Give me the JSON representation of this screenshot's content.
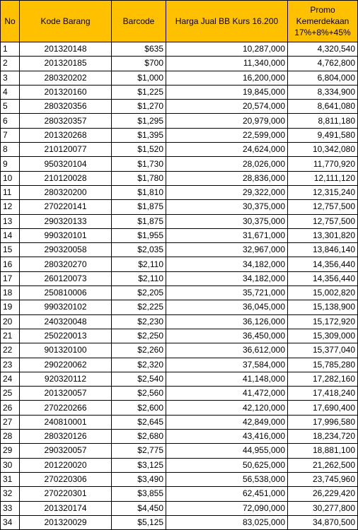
{
  "headers": {
    "no": "No",
    "kode": "Kode Barang",
    "barcode": "Barcode",
    "harga": "Harga Jual BB Kurs 16.200",
    "promo_line1": "Promo",
    "promo_line2": "Kemerdekaan",
    "promo_line3": "17%+8%+45%"
  },
  "colors": {
    "header_bg": "#ffc000",
    "grid": "#000000"
  },
  "rows": [
    {
      "no": "1",
      "kode": "201320148",
      "barcode": "$635",
      "harga": "10,287,000",
      "promo": "4,320,540"
    },
    {
      "no": "2",
      "kode": "201320185",
      "barcode": "$700",
      "harga": "11,340,000",
      "promo": "4,762,800"
    },
    {
      "no": "3",
      "kode": "280320202",
      "barcode": "$1,000",
      "harga": "16,200,000",
      "promo": "6,804,000"
    },
    {
      "no": "4",
      "kode": "201320160",
      "barcode": "$1,225",
      "harga": "19,845,000",
      "promo": "8,334,900"
    },
    {
      "no": "5",
      "kode": "280320356",
      "barcode": "$1,270",
      "harga": "20,574,000",
      "promo": "8,641,080"
    },
    {
      "no": "6",
      "kode": "280320357",
      "barcode": "$1,295",
      "harga": "20,979,000",
      "promo": "8,811,180"
    },
    {
      "no": "7",
      "kode": "201320268",
      "barcode": "$1,395",
      "harga": "22,599,000",
      "promo": "9,491,580"
    },
    {
      "no": "8",
      "kode": "210120077",
      "barcode": "$1,520",
      "harga": "24,624,000",
      "promo": "10,342,080"
    },
    {
      "no": "9",
      "kode": "950320104",
      "barcode": "$1,730",
      "harga": "28,026,000",
      "promo": "11,770,920"
    },
    {
      "no": "10",
      "kode": "210120028",
      "barcode": "$1,780",
      "harga": "28,836,000",
      "promo": "12,111,120"
    },
    {
      "no": "11",
      "kode": "280320200",
      "barcode": "$1,810",
      "harga": "29,322,000",
      "promo": "12,315,240"
    },
    {
      "no": "12",
      "kode": "270220141",
      "barcode": "$1,875",
      "harga": "30,375,000",
      "promo": "12,757,500"
    },
    {
      "no": "13",
      "kode": "290320133",
      "barcode": "$1,875",
      "harga": "30,375,000",
      "promo": "12,757,500"
    },
    {
      "no": "14",
      "kode": "990320101",
      "barcode": "$1,955",
      "harga": "31,671,000",
      "promo": "13,301,820"
    },
    {
      "no": "15",
      "kode": "290320058",
      "barcode": "$2,035",
      "harga": "32,967,000",
      "promo": "13,846,140"
    },
    {
      "no": "16",
      "kode": "280320270",
      "barcode": "$2,110",
      "harga": "34,182,000",
      "promo": "14,356,440"
    },
    {
      "no": "17",
      "kode": "260120073",
      "barcode": "$2,110",
      "harga": "34,182,000",
      "promo": "14,356,440"
    },
    {
      "no": "18",
      "kode": "250810006",
      "barcode": "$2,205",
      "harga": "35,721,000",
      "promo": "15,002,820"
    },
    {
      "no": "19",
      "kode": "990320102",
      "barcode": "$2,225",
      "harga": "36,045,000",
      "promo": "15,138,900"
    },
    {
      "no": "20",
      "kode": "240320048",
      "barcode": "$2,230",
      "harga": "36,126,000",
      "promo": "15,172,920"
    },
    {
      "no": "21",
      "kode": "250220013",
      "barcode": "$2,250",
      "harga": "36,450,000",
      "promo": "15,309,000"
    },
    {
      "no": "22",
      "kode": "901320100",
      "barcode": "$2,260",
      "harga": "36,612,000",
      "promo": "15,377,040"
    },
    {
      "no": "23",
      "kode": "290220062",
      "barcode": "$2,320",
      "harga": "37,584,000",
      "promo": "15,785,280"
    },
    {
      "no": "24",
      "kode": "920320112",
      "barcode": "$2,540",
      "harga": "41,148,000",
      "promo": "17,282,160"
    },
    {
      "no": "25",
      "kode": "201320057",
      "barcode": "$2,560",
      "harga": "41,472,000",
      "promo": "17,418,240"
    },
    {
      "no": "26",
      "kode": "270220266",
      "barcode": "$2,600",
      "harga": "42,120,000",
      "promo": "17,690,400"
    },
    {
      "no": "27",
      "kode": "240810001",
      "barcode": "$2,645",
      "harga": "42,849,000",
      "promo": "17,996,580"
    },
    {
      "no": "28",
      "kode": "280320126",
      "barcode": "$2,680",
      "harga": "43,416,000",
      "promo": "18,234,720"
    },
    {
      "no": "29",
      "kode": "290320057",
      "barcode": "$2,775",
      "harga": "44,955,000",
      "promo": "18,881,100"
    },
    {
      "no": "30",
      "kode": "201220020",
      "barcode": "$3,125",
      "harga": "50,625,000",
      "promo": "21,262,500"
    },
    {
      "no": "31",
      "kode": "270220306",
      "barcode": "$3,490",
      "harga": "56,538,000",
      "promo": "23,745,960"
    },
    {
      "no": "32",
      "kode": "270220301",
      "barcode": "$3,855",
      "harga": "62,451,000",
      "promo": "26,229,420"
    },
    {
      "no": "33",
      "kode": "201320174",
      "barcode": "$4,450",
      "harga": "72,090,000",
      "promo": "30,277,800"
    },
    {
      "no": "34",
      "kode": "201320029",
      "barcode": "$5,125",
      "harga": "83,025,000",
      "promo": "34,870,500"
    }
  ]
}
